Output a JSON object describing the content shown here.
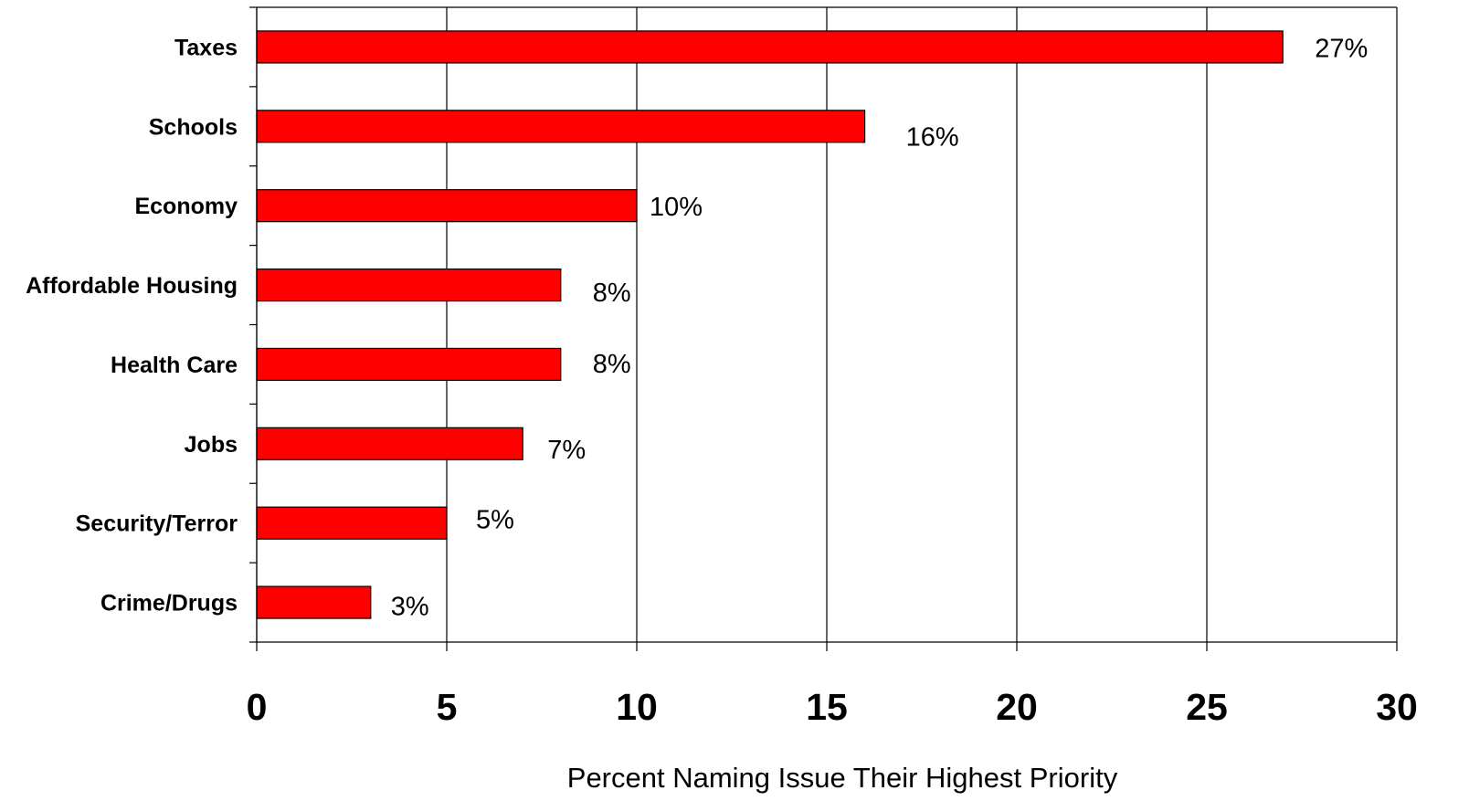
{
  "chart_data": {
    "type": "bar",
    "orientation": "horizontal",
    "categories": [
      "Taxes",
      "Schools",
      "Economy",
      "Affordable Housing",
      "Health Care",
      "Jobs",
      "Security/Terror",
      "Crime/Drugs"
    ],
    "values": [
      27,
      16,
      10,
      8,
      8,
      7,
      5,
      3
    ],
    "data_labels": [
      "27%",
      "16%",
      "10%",
      "8%",
      "8%",
      "7%",
      "5%",
      "3%"
    ],
    "title": "",
    "xlabel": "Percent Naming Issue Their Highest Priority",
    "ylabel": "",
    "xlim": [
      0,
      30
    ],
    "x_ticks": [
      0,
      5,
      10,
      15,
      20,
      25,
      30
    ],
    "grid": "vertical",
    "legend": "none",
    "bar_color": "#ff0000",
    "bar_edge_color": "#000000"
  }
}
